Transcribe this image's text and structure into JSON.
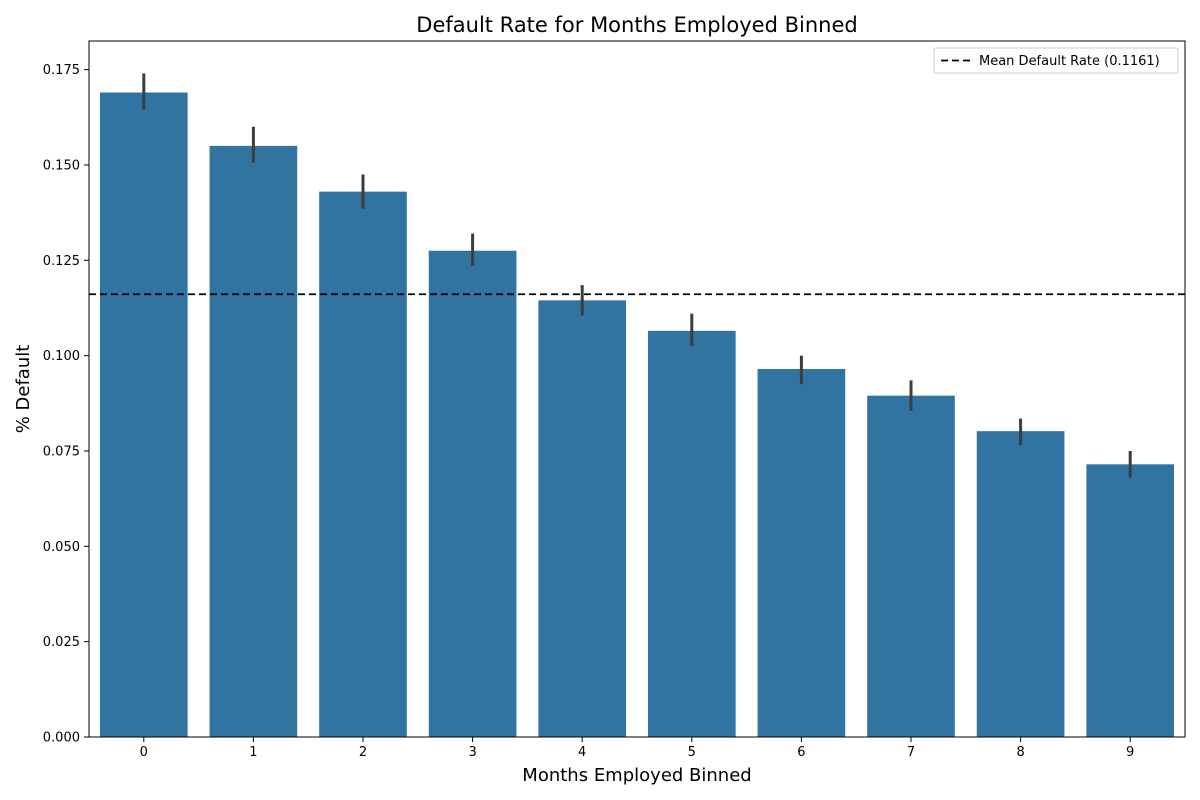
{
  "chart_data": {
    "type": "bar",
    "title": "Default Rate for Months Employed Binned",
    "xlabel": "Months Employed Binned",
    "ylabel": "% Default",
    "categories": [
      "0",
      "1",
      "2",
      "3",
      "4",
      "5",
      "6",
      "7",
      "8",
      "9"
    ],
    "values": [
      0.169,
      0.155,
      0.143,
      0.1275,
      0.1145,
      0.1065,
      0.0965,
      0.0895,
      0.0802,
      0.0715
    ],
    "error_low": [
      0.1645,
      0.1505,
      0.1385,
      0.1235,
      0.1105,
      0.1025,
      0.0925,
      0.0855,
      0.0765,
      0.068
    ],
    "error_high": [
      0.174,
      0.16,
      0.1475,
      0.132,
      0.1185,
      0.111,
      0.1,
      0.0935,
      0.0835,
      0.075
    ],
    "ylim": [
      0,
      0.1825
    ],
    "yticks": [
      0.0,
      0.025,
      0.05,
      0.075,
      0.1,
      0.125,
      0.15,
      0.175
    ],
    "ytick_labels": [
      "0.000",
      "0.025",
      "0.050",
      "0.075",
      "0.100",
      "0.125",
      "0.150",
      "0.175"
    ],
    "reference_line": {
      "value": 0.1161,
      "style": "dashed",
      "color": "#000000"
    },
    "legend": {
      "placement": "top-right",
      "entries": [
        "Mean Default Rate (0.1161)"
      ]
    },
    "grid": false,
    "colors": {
      "bar": "#3274a1",
      "error_bar": "#3d3d3d",
      "mean_line": "#000000"
    }
  }
}
